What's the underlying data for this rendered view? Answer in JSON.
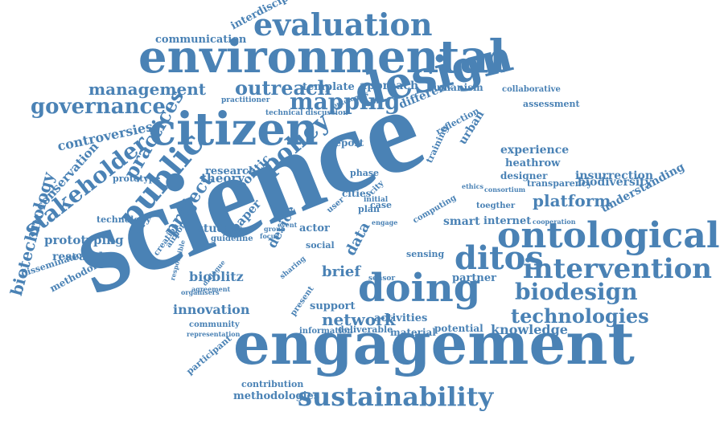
{
  "cloud": {
    "color": "#4a82b5",
    "words": [
      "science",
      "engagement",
      "environmental",
      "citizen",
      "design",
      "public",
      "doing",
      "ontological",
      "ditos",
      "intervention",
      "evaluation",
      "governance",
      "policy",
      "mapping",
      "outreach",
      "management",
      "stakeholder",
      "practices",
      "biotechnology",
      "biodesign",
      "sustainability",
      "project",
      "technologies",
      "network",
      "innovation",
      "bioblitz",
      "knowledge",
      "platform",
      "biodiversity",
      "conservation",
      "prototyping",
      "researcher",
      "controversies",
      "communication",
      "interdisciplinary",
      "template",
      "approach",
      "humanism",
      "collaborative",
      "assessment",
      "urban",
      "different",
      "data",
      "brief",
      "experience",
      "heathrow",
      "designer",
      "insurrection",
      "understanding",
      "support",
      "activities",
      "methodologies",
      "contribution",
      "participant",
      "theory",
      "research",
      "politic",
      "studies",
      "paper",
      "device",
      "methodology",
      "dissemination",
      "technology",
      "prototype",
      "creation",
      "airport",
      "smart",
      "internet",
      "partner",
      "material",
      "potential",
      "deliverable",
      "information",
      "report",
      "phase",
      "cities",
      "actor",
      "social",
      "case",
      "plan",
      "city",
      "user",
      "sensing",
      "reflection",
      "transparency",
      "toegther",
      "computing",
      "cooperation",
      "consortium",
      "community",
      "representation",
      "responsible",
      "dialogue",
      "agreement",
      "organisers",
      "guideline",
      "london",
      "technical discussion",
      "ontologies",
      "practitioner",
      "training",
      "initial",
      "ethics",
      "sensor",
      "present",
      "sharing",
      "event",
      "engage",
      "group",
      "focus"
    ]
  }
}
